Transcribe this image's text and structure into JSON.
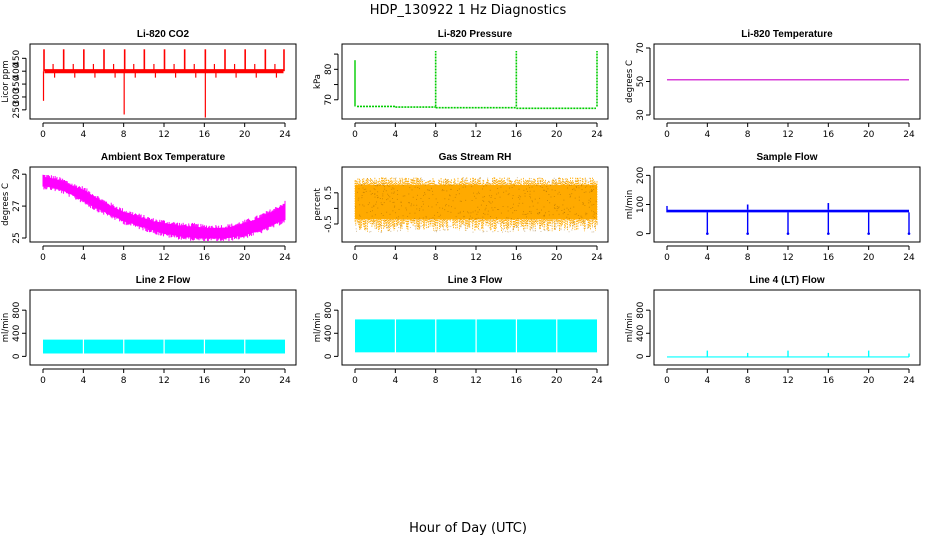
{
  "figure": {
    "title": "HDP_130922  1 Hz Diagnostics",
    "xlabel": "Hour of Day (UTC)"
  },
  "chart_data": [
    {
      "type": "line",
      "title": "Li-820 CO2",
      "ylabel": "Licor ppm",
      "color": "#ff0000",
      "xlim": [
        0,
        24
      ],
      "ylim": [
        230,
        490
      ],
      "yticks": [
        250,
        300,
        350,
        400,
        450
      ],
      "xticks": [
        0,
        4,
        8,
        12,
        16,
        20,
        24
      ],
      "style": "co2",
      "baseline": 400,
      "noise": 8,
      "spikes_up": [
        0.1,
        2.05,
        4.05,
        6.05,
        8.1,
        10.05,
        12.05,
        14.05,
        16.1,
        18.05,
        20.05,
        22.05,
        23.9
      ],
      "spike_up_value": 485,
      "spikes_small": [
        1,
        3,
        5,
        7,
        9,
        11,
        13,
        15,
        17,
        19,
        21,
        23
      ],
      "spike_small_value": 428,
      "spikes_down": [
        {
          "x": 0.05,
          "y": 285
        },
        {
          "x": 8.05,
          "y": 232
        },
        {
          "x": 16.1,
          "y": 220
        }
      ]
    },
    {
      "type": "line",
      "title": "Li-820 Pressure",
      "ylabel": "kPa",
      "color": "#00cc00",
      "xlim": [
        0,
        24
      ],
      "ylim": [
        65,
        87
      ],
      "yticks": [
        70,
        75,
        80,
        85
      ],
      "ytick_labels": [
        "70",
        "",
        "80",
        ""
      ],
      "xticks": [
        0,
        4,
        8,
        12,
        16,
        20,
        24
      ],
      "style": "pressure",
      "start_value": 83,
      "segments": [
        {
          "from": 0.2,
          "to": 4,
          "y": 67.8
        },
        {
          "from": 4,
          "to": 8,
          "y": 67.6
        },
        {
          "from": 8,
          "to": 16,
          "y": 67.4
        },
        {
          "from": 16,
          "to": 23.9,
          "y": 67.2
        }
      ],
      "spikes_up": [
        8,
        16,
        24
      ],
      "spike_up_value": 86
    },
    {
      "type": "line",
      "title": "Li-820 Temperature",
      "ylabel": "degrees C",
      "color": "#cc00cc",
      "xlim": [
        0,
        24
      ],
      "ylim": [
        30,
        70
      ],
      "yticks": [
        30,
        50,
        70
      ],
      "xticks": [
        0,
        4,
        8,
        12,
        16,
        20,
        24
      ],
      "style": "flat",
      "value": 51
    },
    {
      "type": "line",
      "title": "Ambient Box Temperature",
      "ylabel": "degrees C",
      "color": "#ff00ff",
      "xlim": [
        0,
        24
      ],
      "ylim": [
        25,
        29.2
      ],
      "yticks": [
        25,
        27,
        29
      ],
      "xticks": [
        0,
        4,
        8,
        12,
        16,
        20,
        24
      ],
      "style": "band",
      "x": [
        0,
        1,
        2,
        3,
        4,
        5,
        6,
        7,
        8,
        9,
        10,
        11,
        12,
        13,
        14,
        15,
        16,
        17,
        18,
        19,
        20,
        21,
        22,
        23,
        24
      ],
      "lower": [
        28.3,
        28.2,
        28.0,
        27.7,
        27.4,
        27.0,
        26.7,
        26.4,
        26.1,
        25.9,
        25.7,
        25.5,
        25.3,
        25.2,
        25.1,
        25.05,
        25.0,
        25.0,
        25.0,
        25.1,
        25.2,
        25.4,
        25.6,
        25.9,
        26.2
      ],
      "upper": [
        28.8,
        28.7,
        28.5,
        28.2,
        28.0,
        27.6,
        27.2,
        26.9,
        26.6,
        26.4,
        26.2,
        26.0,
        25.9,
        25.8,
        25.7,
        25.7,
        25.6,
        25.6,
        25.6,
        25.7,
        25.9,
        26.1,
        26.4,
        26.7,
        27.1
      ]
    },
    {
      "type": "line",
      "title": "Gas Stream RH",
      "ylabel": "percent",
      "color": "#ffaa00",
      "xlim": [
        0,
        24
      ],
      "ylim": [
        -0.95,
        1.2
      ],
      "yticks": [
        -0.5,
        0,
        0.5
      ],
      "ytick_labels": [
        "-0.5",
        "",
        "0.5"
      ],
      "xticks": [
        0,
        4,
        8,
        12,
        16,
        20,
        24
      ],
      "style": "noise",
      "low": -0.75,
      "high": 1.0,
      "core_low": -0.35,
      "core_high": 0.75,
      "dots": true
    },
    {
      "type": "line",
      "title": "Sample Flow",
      "ylabel": "ml/min",
      "color": "#0000ff",
      "xlim": [
        0,
        24
      ],
      "ylim": [
        -15,
        215
      ],
      "yticks": [
        0,
        100,
        200
      ],
      "xticks": [
        0,
        4,
        8,
        12,
        16,
        20,
        24
      ],
      "style": "flow",
      "band_low": 73,
      "band_high": 82,
      "start_value": 95,
      "dips": [
        4,
        8,
        12,
        16,
        20,
        24
      ],
      "dip_value": 0,
      "spikes_up": [
        {
          "x": 8.0,
          "y": 100
        },
        {
          "x": 16.0,
          "y": 105
        }
      ]
    },
    {
      "type": "line",
      "title": "Line 2 Flow",
      "ylabel": "ml/min",
      "color": "#00ffff",
      "xlim": [
        0,
        24
      ],
      "ylim": [
        -80,
        1080
      ],
      "yticks": [
        0,
        400,
        800
      ],
      "ytick_labels": [
        "0",
        "400",
        "800"
      ],
      "xticks": [
        0,
        4,
        8,
        12,
        16,
        20,
        24
      ],
      "style": "block",
      "low": 50,
      "high": 290,
      "gaps": [
        3.95,
        7.95,
        11.95,
        15.95,
        19.95
      ]
    },
    {
      "type": "line",
      "title": "Line 3 Flow",
      "ylabel": "ml/min",
      "color": "#00ffff",
      "xlim": [
        0,
        24
      ],
      "ylim": [
        -80,
        1080
      ],
      "yticks": [
        0,
        400,
        800
      ],
      "ytick_labels": [
        "0",
        "400",
        "800"
      ],
      "xticks": [
        0,
        4,
        8,
        12,
        16,
        20,
        24
      ],
      "style": "block",
      "low": 70,
      "high": 640,
      "gaps": [
        3.95,
        7.95,
        11.95,
        15.95,
        19.95
      ]
    },
    {
      "type": "line",
      "title": "Line 4 (LT) Flow",
      "ylabel": "ml/min",
      "color": "#00ffff",
      "xlim": [
        0,
        24
      ],
      "ylim": [
        -80,
        1080
      ],
      "yticks": [
        0,
        400,
        800
      ],
      "ytick_labels": [
        "0",
        "400",
        "800"
      ],
      "xticks": [
        0,
        4,
        8,
        12,
        16,
        20,
        24
      ],
      "style": "lowflat",
      "value": -10,
      "spikes_up": [
        {
          "x": 4,
          "y": 100
        },
        {
          "x": 8,
          "y": 60
        },
        {
          "x": 12,
          "y": 100
        },
        {
          "x": 16,
          "y": 60
        },
        {
          "x": 20,
          "y": 100
        },
        {
          "x": 24,
          "y": 50
        }
      ]
    }
  ]
}
